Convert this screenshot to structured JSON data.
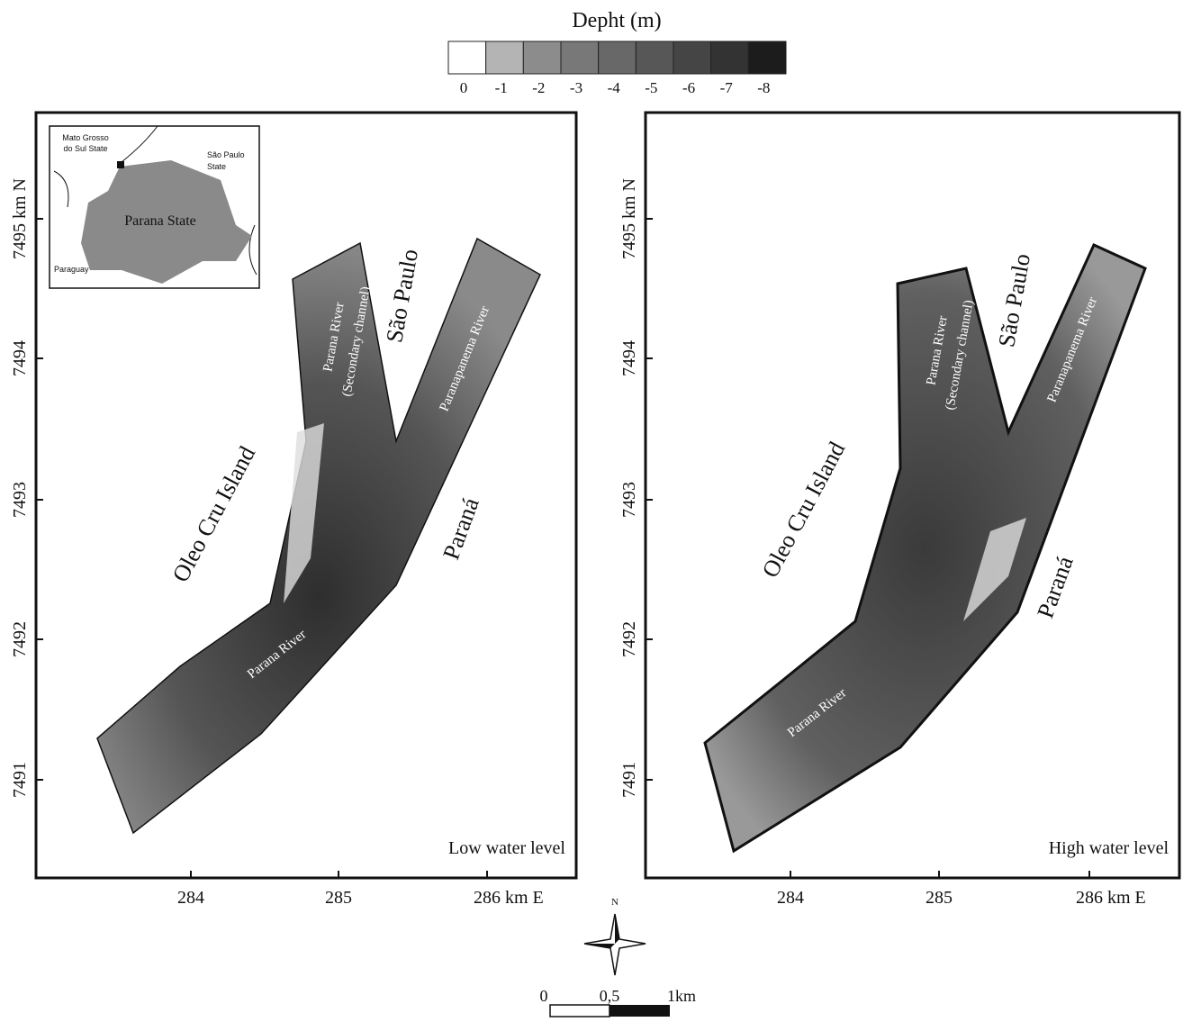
{
  "legend": {
    "title": "Depht (m)",
    "labels": [
      "0",
      "-1",
      "-2",
      "-3",
      "-4",
      "-5",
      "-6",
      "-7",
      "-8"
    ],
    "colors": [
      "#ffffff",
      "#b4b4b4",
      "#8c8c8c",
      "#787878",
      "#686868",
      "#575757",
      "#454545",
      "#333333",
      "#1c1c1c"
    ]
  },
  "panels": [
    {
      "y_labels": [
        "7495 km N",
        "7494",
        "7493",
        "7492",
        "7491"
      ],
      "x_labels": [
        "284",
        "285",
        "286 km E"
      ],
      "caption": "Low water level",
      "places": [
        "Oleo Cru Island",
        "São Paulo",
        "Paraná"
      ],
      "rivers": [
        "Parana River",
        "(Secondary channel)",
        "Paranapanema River",
        "Parana River"
      ]
    },
    {
      "y_labels": [
        "7495 km N",
        "7494",
        "7493",
        "7492",
        "7491"
      ],
      "x_labels": [
        "284",
        "285",
        "286 km E"
      ],
      "caption": "High water level",
      "places": [
        "Oleo Cru Island",
        "São Paulo",
        "Paraná"
      ],
      "rivers": [
        "Parana River",
        "(Secondary channel)",
        "Paranapanema River",
        "Parana River"
      ]
    }
  ],
  "inset": {
    "labels": [
      "Mato Grosso",
      "do Sul State",
      "São Paulo",
      "State",
      "Parana State",
      "Paraguay"
    ]
  },
  "compass": "N",
  "scale": [
    "0",
    "0,5",
    "1km"
  ]
}
